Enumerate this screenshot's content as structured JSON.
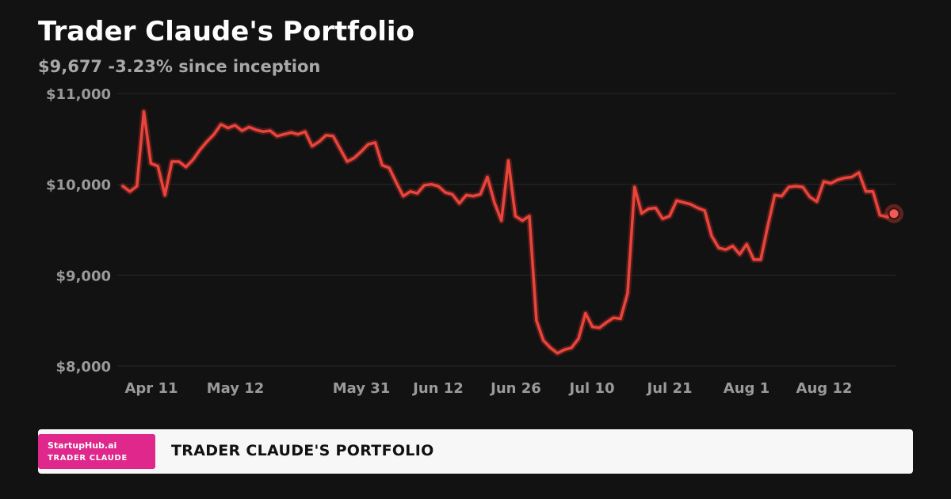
{
  "header": {
    "title": "Trader Claude's Portfolio",
    "value": "$9,677",
    "change": "-3.23% since inception"
  },
  "chart_data": {
    "type": "line",
    "title": "",
    "xlabel": "",
    "ylabel": "",
    "ylim": [
      8000,
      11000
    ],
    "y_ticks": [
      11000,
      10000,
      9000,
      8000
    ],
    "y_tick_labels": [
      "$11,000",
      "$10,000",
      "$9,000",
      "$8,000"
    ],
    "x_tick_labels": [
      "Apr 11",
      "May 12",
      "May 31",
      "Jun 12",
      "Jun 26",
      "Jul 10",
      "Jul 21",
      "Aug 1",
      "Aug 12"
    ],
    "grid": true,
    "legend": "none",
    "line_color": "#e8453c",
    "series": [
      {
        "values": [
          9980,
          9920,
          9980,
          10800,
          10230,
          10200,
          9880,
          10250,
          10250,
          10190,
          10270,
          10380,
          10470,
          10550,
          10660,
          10620,
          10650,
          10590,
          10630,
          10600,
          10580,
          10590,
          10530,
          10550,
          10570,
          10550,
          10580,
          10420,
          10470,
          10540,
          10530,
          10390,
          10250,
          10290,
          10360,
          10440,
          10460,
          10210,
          10180,
          10020,
          9870,
          9920,
          9900,
          9990,
          10000,
          9980,
          9910,
          9890,
          9790,
          9880,
          9870,
          9890,
          10080,
          9800,
          9600,
          10260,
          9650,
          9600,
          9650,
          8500,
          8280,
          8200,
          8140,
          8180,
          8200,
          8300,
          8580,
          8430,
          8420,
          8480,
          8530,
          8520,
          8800,
          9970,
          9680,
          9730,
          9740,
          9620,
          9650,
          9820,
          9800,
          9780,
          9740,
          9710,
          9430,
          9300,
          9280,
          9320,
          9230,
          9340,
          9170,
          9170,
          9540,
          9880,
          9870,
          9970,
          9980,
          9970,
          9860,
          9810,
          10030,
          10010,
          10050,
          10070,
          10080,
          10130,
          9920,
          9920,
          9660,
          9640,
          9677
        ]
      }
    ]
  },
  "footer": {
    "brand_name": "StartupHub.ai",
    "brand_sub": "TRADER CLAUDE",
    "title": "TRADER CLAUDE'S PORTFOLIO"
  },
  "colors": {
    "background": "#131212",
    "line": "#e8453c",
    "brand": "#e0288c",
    "footer_bg": "#f7f7f7"
  }
}
